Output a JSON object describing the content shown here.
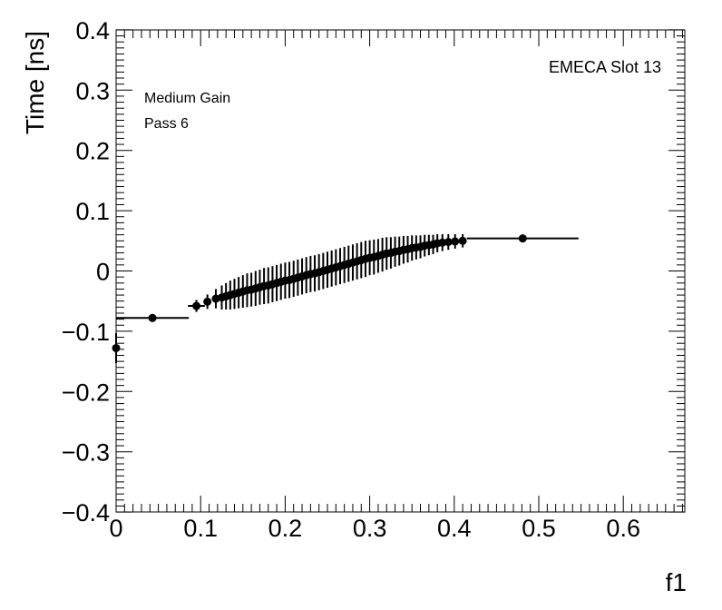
{
  "chart_data": {
    "type": "scatter",
    "xlabel": "f1",
    "ylabel": "Time [ns]",
    "xlim": [
      0,
      0.68
    ],
    "ylim": [
      -0.4,
      0.4
    ],
    "x_ticks": [
      "0",
      "0.1",
      "0.2",
      "0.3",
      "0.4",
      "0.5",
      "0.6"
    ],
    "y_ticks": [
      "−0.4",
      "−0.3",
      "−0.2",
      "−0.1",
      "0",
      "0.1",
      "0.2",
      "0.3",
      "0.4"
    ],
    "annotations": {
      "gain": "Medium Gain",
      "pass": "Pass 6",
      "slot": "EMECA Slot 13"
    },
    "series": [
      {
        "points": [
          {
            "x": 0.0,
            "y": -0.128,
            "xerr": [
              0.0,
              0.0
            ],
            "yerr": 0.025
          },
          {
            "x": 0.043,
            "y": -0.078,
            "xerr": [
              0.043,
              0.043
            ],
            "yerr": 0.006
          },
          {
            "x": 0.095,
            "y": -0.058,
            "xerr": [
              0.01,
              0.01
            ],
            "yerr": 0.01
          },
          {
            "x": 0.108,
            "y": -0.051,
            "xerr": [
              0.004,
              0.004
            ],
            "yerr": 0.012
          },
          {
            "x": 0.118,
            "y": -0.046,
            "xerr": [
              0.003,
              0.003
            ],
            "yerr": 0.016
          },
          {
            "x": 0.125,
            "y": -0.044,
            "xerr": [
              0.002,
              0.002
            ],
            "yerr": 0.02
          },
          {
            "x": 0.13,
            "y": -0.042,
            "xerr": [
              0.002,
              0.002
            ],
            "yerr": 0.022
          },
          {
            "x": 0.135,
            "y": -0.04,
            "xerr": [
              0.002,
              0.002
            ],
            "yerr": 0.024
          },
          {
            "x": 0.14,
            "y": -0.038,
            "xerr": [
              0.002,
              0.002
            ],
            "yerr": 0.025
          },
          {
            "x": 0.145,
            "y": -0.036,
            "xerr": [
              0.002,
              0.002
            ],
            "yerr": 0.026
          },
          {
            "x": 0.15,
            "y": -0.034,
            "xerr": [
              0.002,
              0.002
            ],
            "yerr": 0.027
          },
          {
            "x": 0.155,
            "y": -0.032,
            "xerr": [
              0.002,
              0.002
            ],
            "yerr": 0.028
          },
          {
            "x": 0.16,
            "y": -0.031,
            "xerr": [
              0.002,
              0.002
            ],
            "yerr": 0.028
          },
          {
            "x": 0.165,
            "y": -0.029,
            "xerr": [
              0.002,
              0.002
            ],
            "yerr": 0.029
          },
          {
            "x": 0.17,
            "y": -0.027,
            "xerr": [
              0.002,
              0.002
            ],
            "yerr": 0.029
          },
          {
            "x": 0.175,
            "y": -0.025,
            "xerr": [
              0.002,
              0.002
            ],
            "yerr": 0.03
          },
          {
            "x": 0.18,
            "y": -0.024,
            "xerr": [
              0.002,
              0.002
            ],
            "yerr": 0.03
          },
          {
            "x": 0.185,
            "y": -0.022,
            "xerr": [
              0.002,
              0.002
            ],
            "yerr": 0.03
          },
          {
            "x": 0.19,
            "y": -0.02,
            "xerr": [
              0.002,
              0.002
            ],
            "yerr": 0.03
          },
          {
            "x": 0.195,
            "y": -0.018,
            "xerr": [
              0.002,
              0.002
            ],
            "yerr": 0.03
          },
          {
            "x": 0.2,
            "y": -0.016,
            "xerr": [
              0.002,
              0.002
            ],
            "yerr": 0.03
          },
          {
            "x": 0.205,
            "y": -0.015,
            "xerr": [
              0.002,
              0.002
            ],
            "yerr": 0.03
          },
          {
            "x": 0.21,
            "y": -0.013,
            "xerr": [
              0.002,
              0.002
            ],
            "yerr": 0.03
          },
          {
            "x": 0.215,
            "y": -0.011,
            "xerr": [
              0.002,
              0.002
            ],
            "yerr": 0.03
          },
          {
            "x": 0.22,
            "y": -0.009,
            "xerr": [
              0.002,
              0.002
            ],
            "yerr": 0.03
          },
          {
            "x": 0.225,
            "y": -0.007,
            "xerr": [
              0.002,
              0.002
            ],
            "yerr": 0.03
          },
          {
            "x": 0.23,
            "y": -0.005,
            "xerr": [
              0.002,
              0.002
            ],
            "yerr": 0.03
          },
          {
            "x": 0.235,
            "y": -0.004,
            "xerr": [
              0.002,
              0.002
            ],
            "yerr": 0.03
          },
          {
            "x": 0.24,
            "y": -0.002,
            "xerr": [
              0.002,
              0.002
            ],
            "yerr": 0.03
          },
          {
            "x": 0.245,
            "y": 0.0,
            "xerr": [
              0.002,
              0.002
            ],
            "yerr": 0.03
          },
          {
            "x": 0.25,
            "y": 0.002,
            "xerr": [
              0.002,
              0.002
            ],
            "yerr": 0.03
          },
          {
            "x": 0.255,
            "y": 0.004,
            "xerr": [
              0.002,
              0.002
            ],
            "yerr": 0.03
          },
          {
            "x": 0.26,
            "y": 0.006,
            "xerr": [
              0.002,
              0.002
            ],
            "yerr": 0.03
          },
          {
            "x": 0.265,
            "y": 0.008,
            "xerr": [
              0.002,
              0.002
            ],
            "yerr": 0.03
          },
          {
            "x": 0.27,
            "y": 0.01,
            "xerr": [
              0.002,
              0.002
            ],
            "yerr": 0.03
          },
          {
            "x": 0.275,
            "y": 0.012,
            "xerr": [
              0.002,
              0.002
            ],
            "yerr": 0.03
          },
          {
            "x": 0.28,
            "y": 0.014,
            "xerr": [
              0.002,
              0.002
            ],
            "yerr": 0.03
          },
          {
            "x": 0.285,
            "y": 0.016,
            "xerr": [
              0.002,
              0.002
            ],
            "yerr": 0.03
          },
          {
            "x": 0.29,
            "y": 0.018,
            "xerr": [
              0.002,
              0.002
            ],
            "yerr": 0.03
          },
          {
            "x": 0.295,
            "y": 0.02,
            "xerr": [
              0.002,
              0.002
            ],
            "yerr": 0.03
          },
          {
            "x": 0.3,
            "y": 0.022,
            "xerr": [
              0.002,
              0.002
            ],
            "yerr": 0.029
          },
          {
            "x": 0.305,
            "y": 0.023,
            "xerr": [
              0.002,
              0.002
            ],
            "yerr": 0.029
          },
          {
            "x": 0.31,
            "y": 0.025,
            "xerr": [
              0.002,
              0.002
            ],
            "yerr": 0.028
          },
          {
            "x": 0.315,
            "y": 0.027,
            "xerr": [
              0.002,
              0.002
            ],
            "yerr": 0.028
          },
          {
            "x": 0.32,
            "y": 0.029,
            "xerr": [
              0.002,
              0.002
            ],
            "yerr": 0.027
          },
          {
            "x": 0.325,
            "y": 0.03,
            "xerr": [
              0.002,
              0.002
            ],
            "yerr": 0.026
          },
          {
            "x": 0.33,
            "y": 0.032,
            "xerr": [
              0.002,
              0.002
            ],
            "yerr": 0.025
          },
          {
            "x": 0.335,
            "y": 0.033,
            "xerr": [
              0.002,
              0.002
            ],
            "yerr": 0.024
          },
          {
            "x": 0.34,
            "y": 0.035,
            "xerr": [
              0.002,
              0.002
            ],
            "yerr": 0.023
          },
          {
            "x": 0.345,
            "y": 0.036,
            "xerr": [
              0.002,
              0.002
            ],
            "yerr": 0.022
          },
          {
            "x": 0.35,
            "y": 0.038,
            "xerr": [
              0.002,
              0.002
            ],
            "yerr": 0.021
          },
          {
            "x": 0.355,
            "y": 0.039,
            "xerr": [
              0.002,
              0.002
            ],
            "yerr": 0.02
          },
          {
            "x": 0.36,
            "y": 0.04,
            "xerr": [
              0.002,
              0.002
            ],
            "yerr": 0.019
          },
          {
            "x": 0.365,
            "y": 0.042,
            "xerr": [
              0.002,
              0.002
            ],
            "yerr": 0.018
          },
          {
            "x": 0.37,
            "y": 0.043,
            "xerr": [
              0.002,
              0.002
            ],
            "yerr": 0.017
          },
          {
            "x": 0.375,
            "y": 0.044,
            "xerr": [
              0.002,
              0.002
            ],
            "yerr": 0.016
          },
          {
            "x": 0.38,
            "y": 0.046,
            "xerr": [
              0.002,
              0.002
            ],
            "yerr": 0.015
          },
          {
            "x": 0.386,
            "y": 0.047,
            "xerr": [
              0.003,
              0.003
            ],
            "yerr": 0.014
          },
          {
            "x": 0.393,
            "y": 0.048,
            "xerr": [
              0.003,
              0.003
            ],
            "yerr": 0.013
          },
          {
            "x": 0.401,
            "y": 0.049,
            "xerr": [
              0.004,
              0.004
            ],
            "yerr": 0.012
          },
          {
            "x": 0.41,
            "y": 0.05,
            "xerr": [
              0.004,
              0.004
            ],
            "yerr": 0.011
          },
          {
            "x": 0.481,
            "y": 0.054,
            "xerr": [
              0.066,
              0.066
            ],
            "yerr": 0.004
          }
        ]
      }
    ]
  }
}
